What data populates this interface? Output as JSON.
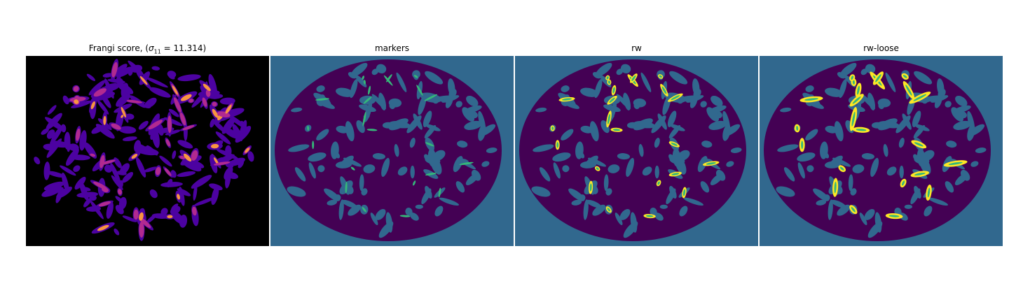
{
  "figure": {
    "panels": [
      {
        "id": "frangi",
        "title_prefix": "Frangi score, (",
        "title_sigma": "σ",
        "title_sub": "11",
        "title_suffix": " = 11.314)",
        "colormap": "plasma",
        "background_color": "#000000"
      },
      {
        "id": "markers",
        "title": "markers",
        "background_color": "#31688e",
        "tissue_color": "#440154",
        "marker_color": "#35b779"
      },
      {
        "id": "rw",
        "title": "rw",
        "background_color": "#31688e",
        "tissue_color": "#440154",
        "region_color": "#fde725",
        "region_core_color": "#35b779"
      },
      {
        "id": "rw-loose",
        "title": "rw-loose",
        "background_color": "#31688e",
        "tissue_color": "#440154",
        "region_color": "#fde725",
        "region_core_color": "#35b779"
      }
    ]
  }
}
